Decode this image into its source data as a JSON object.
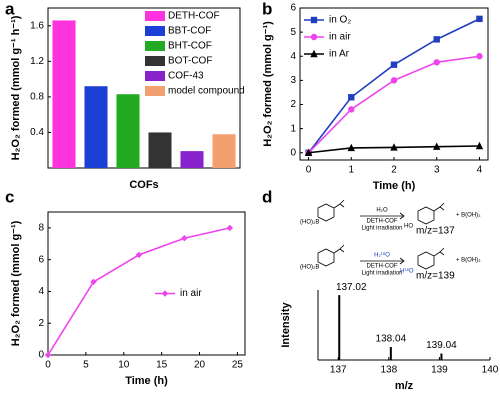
{
  "chart_data": [
    {
      "panel": "a",
      "type": "bar",
      "xlabel": "COFs",
      "ylabel": "H₂O₂ formed (mmol g⁻¹ h⁻¹)",
      "categories": [
        "DETH-COF",
        "BBT-COF",
        "BHT-COF",
        "BOT-COF",
        "COF-43",
        "model compound"
      ],
      "values": [
        1.66,
        0.92,
        0.83,
        0.4,
        0.19,
        0.38
      ],
      "colors": [
        "#ff33dd",
        "#1c3fd6",
        "#22aa22",
        "#333333",
        "#8822cc",
        "#f2a070"
      ],
      "ylim": [
        0,
        1.8
      ],
      "yticks": [
        0.4,
        0.8,
        1.2,
        1.6
      ],
      "legend": "upper right"
    },
    {
      "panel": "b",
      "type": "line",
      "xlabel": "Time (h)",
      "ylabel": "H₂O₂ formed (mmol g⁻¹)",
      "x": [
        0,
        1,
        2,
        3,
        4
      ],
      "series": [
        {
          "name": "in O₂",
          "color": "#1f3fbf",
          "marker": "square",
          "values": [
            0,
            2.3,
            3.65,
            4.7,
            5.55
          ]
        },
        {
          "name": "in air",
          "color": "#ee44ee",
          "marker": "circle",
          "values": [
            0,
            1.8,
            3.0,
            3.75,
            4.0
          ]
        },
        {
          "name": "in Ar",
          "color": "#000000",
          "marker": "triangle",
          "values": [
            0,
            0.2,
            0.22,
            0.25,
            0.28
          ]
        }
      ],
      "xlim": [
        -0.2,
        4.2
      ],
      "ylim": [
        -0.3,
        6
      ],
      "xticks": [
        0,
        1,
        2,
        3,
        4
      ],
      "yticks": [
        0,
        1,
        2,
        3,
        4,
        5,
        6
      ],
      "legend": "upper left"
    },
    {
      "panel": "c",
      "type": "line",
      "xlabel": "Time (h)",
      "ylabel": "H₂O₂ formed (mmol g⁻¹)",
      "x": [
        0,
        6,
        12,
        18,
        24
      ],
      "series": [
        {
          "name": "in air",
          "color": "#ee44ee",
          "marker": "diamond",
          "values": [
            0,
            4.6,
            6.3,
            7.35,
            8.0
          ]
        }
      ],
      "xlim": [
        0,
        26
      ],
      "ylim": [
        0,
        9
      ],
      "xticks": [
        0,
        5,
        10,
        15,
        20,
        25
      ],
      "yticks": [
        0,
        2,
        4,
        6,
        8
      ],
      "legend": "center right"
    },
    {
      "panel": "d",
      "type": "stem",
      "xlabel": "m/z",
      "ylabel": "Intensity",
      "x": [
        137.02,
        138.04,
        139.04
      ],
      "values": [
        1.0,
        0.2,
        0.1
      ],
      "color": "#000000",
      "xlim": [
        136.6,
        140
      ],
      "ylim": [
        0,
        1.08
      ],
      "xticks": [
        137,
        138,
        139,
        140
      ]
    }
  ],
  "scheme": {
    "reactions": [
      {
        "reactant": "(HO)₂B",
        "reagent": "H₂O",
        "catalyst": "DETH-COF",
        "condition": "Light irradiation",
        "product_group": "HO",
        "product_mz": "m/z=137",
        "byproduct": "+ B(OH)₃"
      },
      {
        "reactant": "(HO)₂B",
        "reagent": "H₂¹⁸O",
        "catalyst": "DETH-COF",
        "condition": "Light irradiation",
        "product_group": "H¹⁸O",
        "product_mz": "m/z=139",
        "byproduct": "+ B(OH)₃"
      }
    ]
  }
}
